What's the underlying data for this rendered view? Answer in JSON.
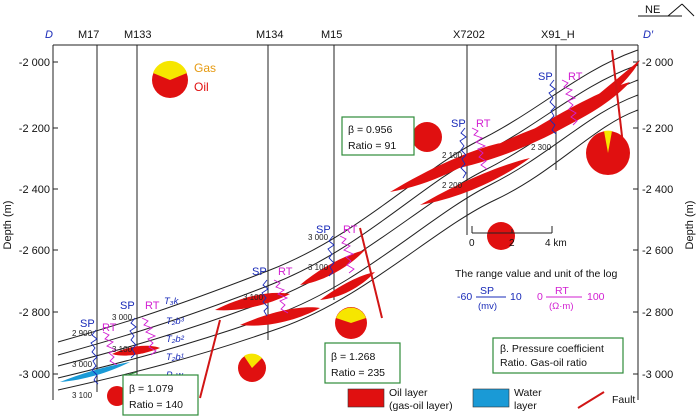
{
  "section": {
    "start_label": "D",
    "end_label": "D′",
    "orientation": "NE",
    "wells": [
      "M17",
      "M133",
      "M134",
      "M15",
      "X7202",
      "X91_H"
    ]
  },
  "axes": {
    "left_label": "Depth (m)",
    "right_label": "Depth (m)",
    "ticks": [
      "-2 000",
      "-2 200",
      "-2 400",
      "-2 600",
      "-2 800",
      "-3 000"
    ]
  },
  "logs": {
    "sp": "SP",
    "rt": "RT",
    "depth_labels": [
      "2 900",
      "3 000",
      "3 100",
      "3 000",
      "3 100",
      "3 100",
      "3 000",
      "3 100",
      "2 100",
      "2 200",
      "2 300"
    ]
  },
  "formations": {
    "t3k": "T₃k",
    "t2b3": "T₂b³",
    "t2b2": "T₂b²",
    "t2b1": "T₂b¹",
    "p2w": "P₂w"
  },
  "pie_legend": {
    "gas": "Gas",
    "oil": "Oil"
  },
  "pressure_boxes": [
    {
      "beta": "β = 1.079",
      "ratio": "Ratio = 140"
    },
    {
      "beta": "β = 1.268",
      "ratio": "Ratio = 235"
    },
    {
      "beta": "β = 0.956",
      "ratio": "Ratio = 91"
    }
  ],
  "scale_bar": {
    "labels": [
      "0",
      "2",
      "4 km"
    ]
  },
  "log_units": {
    "title": "The range value and unit of the log",
    "sp_min": "-60",
    "sp_label": "SP",
    "sp_unit": "(mv)",
    "sp_max": "10",
    "rt_min": "0",
    "rt_label": "RT",
    "rt_unit": "(Ω·m)",
    "rt_max": "100"
  },
  "notes": {
    "beta": "β. Pressure coefficient",
    "ratio": "Ratio. Gas-oil ratio"
  },
  "legend": {
    "oil_layer": "Oil layer",
    "oil_layer_sub": "(gas-oil layer)",
    "water_layer": "Water",
    "water_layer_sub": "layer",
    "fault": "Fault"
  },
  "colors": {
    "oil": "#e01010",
    "gas": "#f6e600",
    "water": "#1a9ad6",
    "sp_curve": "#1a2bb8",
    "rt_curve": "#d21fd2",
    "fault": "#d11515",
    "box_border": "#2e8b3a"
  }
}
